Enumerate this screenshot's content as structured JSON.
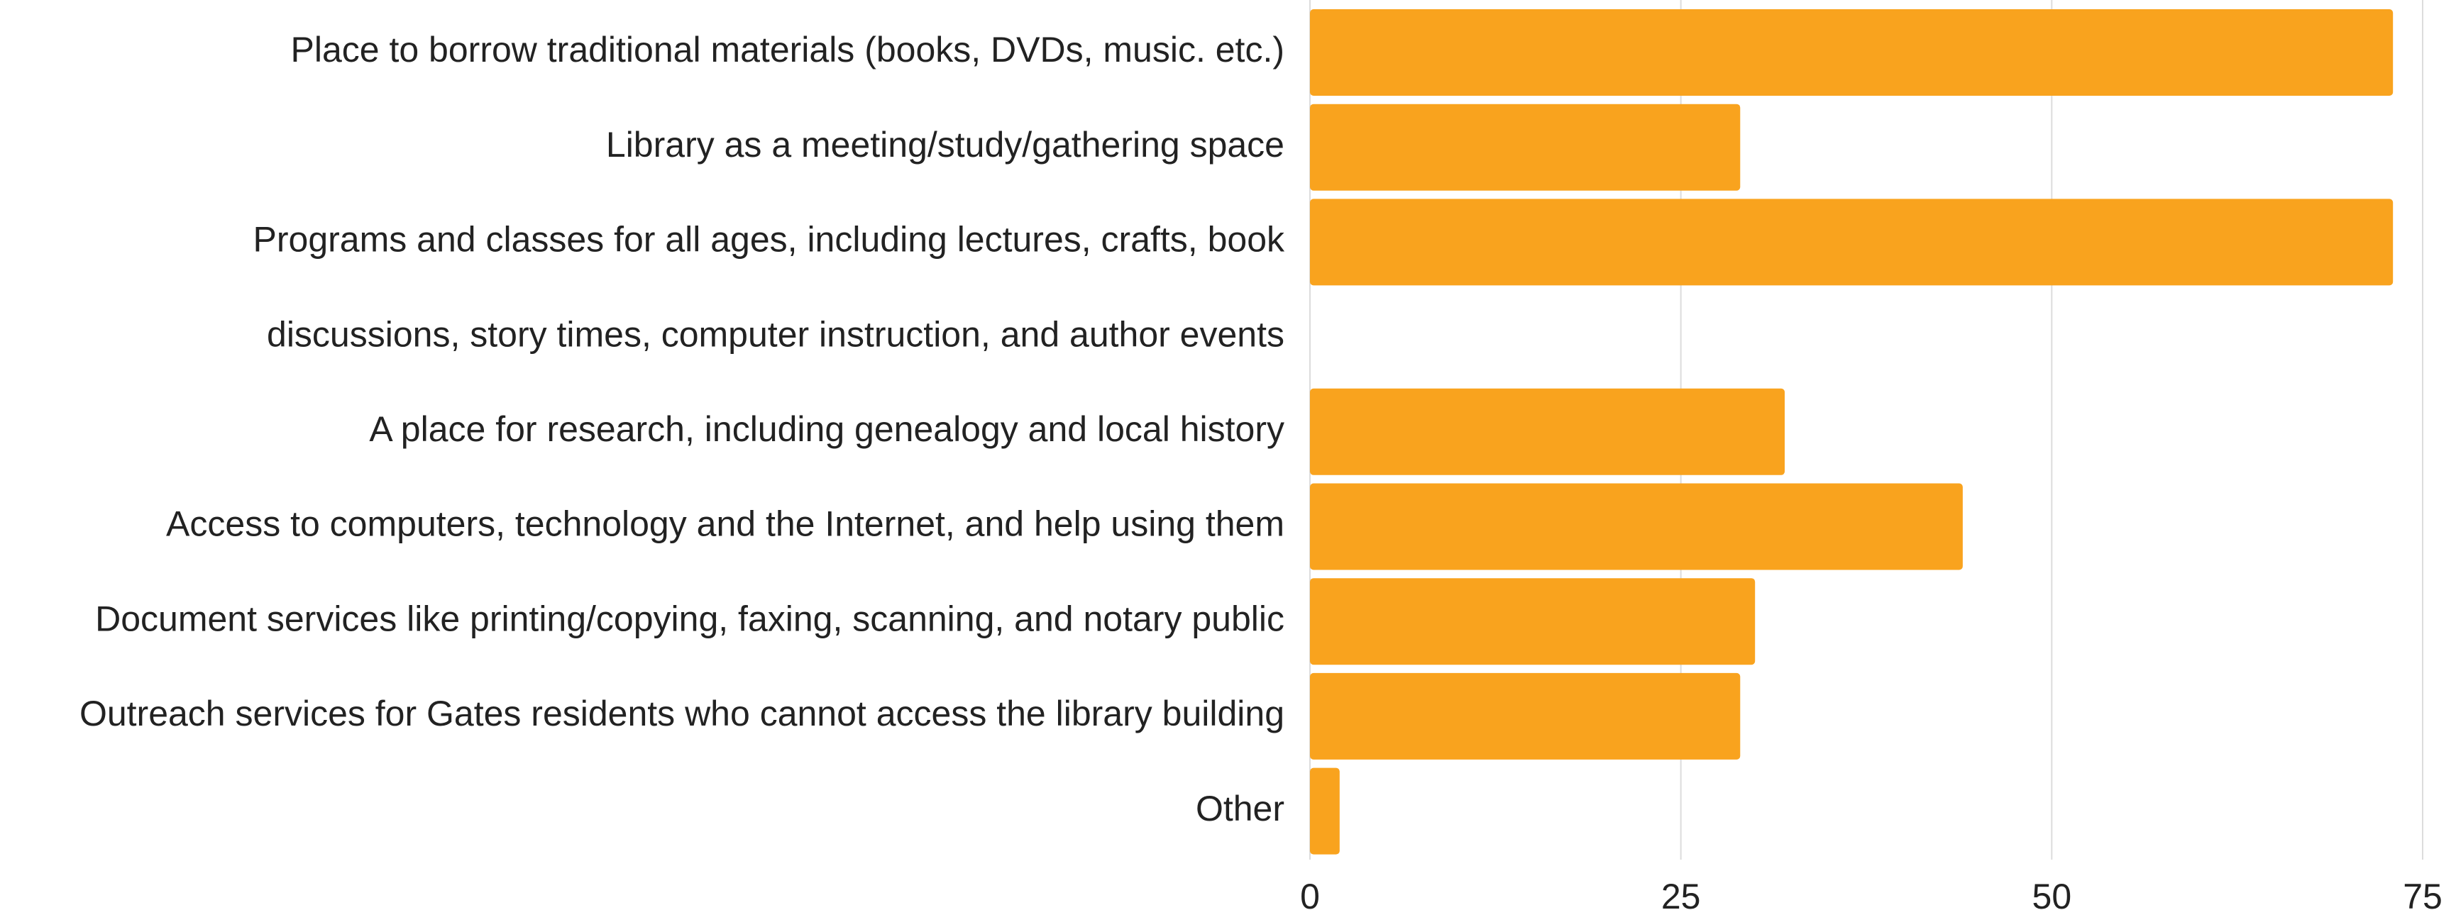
{
  "chart_data": {
    "type": "bar",
    "orientation": "horizontal",
    "categories": [
      "Place to borrow traditional materials (books, DVDs, music. etc.)",
      "Library as a meeting/study/gathering space",
      "Programs and classes for all ages, including lectures, crafts, book",
      "discussions, story times, computer instruction, and author events",
      "A place for research, including genealogy and local history",
      "Access to computers, technology and the Internet, and help using them",
      "Document services like printing/copying, faxing, scanning, and notary public",
      "Outreach services for Gates residents who cannot access the library building",
      "Other"
    ],
    "values": [
      73,
      29,
      73,
      null,
      32,
      44,
      30,
      29,
      2
    ],
    "color": "#f9a31e",
    "xlim": [
      0,
      75
    ],
    "xticks": [
      0,
      25,
      50,
      75
    ],
    "grid": true
  }
}
